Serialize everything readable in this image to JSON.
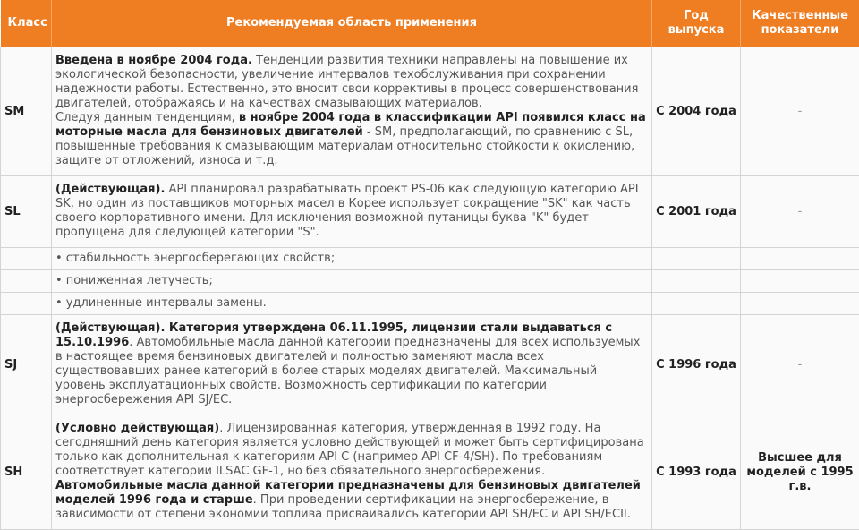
{
  "table": {
    "header": [
      "Класс",
      "Рекомендуемая область применения",
      "Год выпуска",
      "Качественные показатели"
    ],
    "rows": [
      {
        "class": "SM",
        "description": [
          [
            {
              "text": "Введена в ноябре 2004 года.",
              "bold": true
            },
            {
              "text": " Тенденции развития техники направлены на повышение их экологической безопасности, увеличение интервалов техобслуживания при сохранении надежности работы. Естественно, это вносит свои коррективы в процесс совершенствования двигателей, отображаясь и на качествах смазывающих материалов."
            }
          ],
          [
            {
              "text": "Следуя данным тенденциям, "
            },
            {
              "text": "в ноябре 2004 года в классификации API появился класс на моторные масла для бензиновых двигателей",
              "bold": true
            },
            {
              "text": " - SM, предполагающий, по сравнению с SL, повышенные требования к смазывающим материалам относительно стойкости к окислению, защите от отложений, износа и т.д."
            }
          ]
        ],
        "year": "С 2004 года",
        "quality": "-"
      },
      {
        "class": "SL",
        "description": [
          [
            {
              "text": "(Действующая).",
              "bold": true
            },
            {
              "text": " API планировал разрабатывать проект PS-06 как следующую категорию API SK, но один из поставщиков моторных масел в Корее использует сокращение \"SK\" как часть своего корпоративного имени. Для исключения возможной путаницы буква \"K\" будет пропущена для следующей категории \"S\"."
            }
          ]
        ],
        "year": "С 2001 года",
        "quality": "-"
      },
      {
        "description": [
          [
            {
              "text": "• стабильность энергосберегающих свойств;"
            }
          ]
        ]
      },
      {
        "description": [
          [
            {
              "text": "• пониженная летучесть;"
            }
          ]
        ]
      },
      {
        "description": [
          [
            {
              "text": "• удлиненные интервалы замены."
            }
          ]
        ]
      },
      {
        "class": "SJ",
        "description": [
          [
            {
              "text": "(Действующая). Категория утверждена 06.11.1995, лицензии стали выдаваться с 15.10.1996",
              "bold": true
            },
            {
              "text": ". Автомобильные масла данной категории предназначены для всех используемых в настоящее время бензиновых двигателей и полностью заменяют масла всех существовавших ранее категорий в более старых моделях двигателей. Максимальный уровень эксплуатационных свойств. Возможность сертификации по категории энергосбережения API SJ/EC."
            }
          ]
        ],
        "year": "С 1996 года",
        "quality": "-"
      },
      {
        "class": "SH",
        "description": [
          [
            {
              "text": "(Условно действующая)",
              "bold": true
            },
            {
              "text": ". Лицензированная категория, утвержденная в 1992 году. На сегодняшний день категория является условно действующей и может быть сертифицирована только как дополнительная к категориям API С (например API CF-4/SH). По требованиям соответствует категории ILSAC GF-1, но без обязательного энергосбережения. "
            },
            {
              "text": "Автомобильные масла данной категории предназначены для бензиновых двигателей моделей 1996 года и старше",
              "bold": true
            },
            {
              "text": ". При проведении сертификации на энергосбережение, в зависимости от степени экономии топлива присваивались категории API SH/EC и API SH/ECII."
            }
          ]
        ],
        "year": "С 1993 года",
        "quality": "Высшее для моделей с 1995 г.в."
      }
    ]
  }
}
